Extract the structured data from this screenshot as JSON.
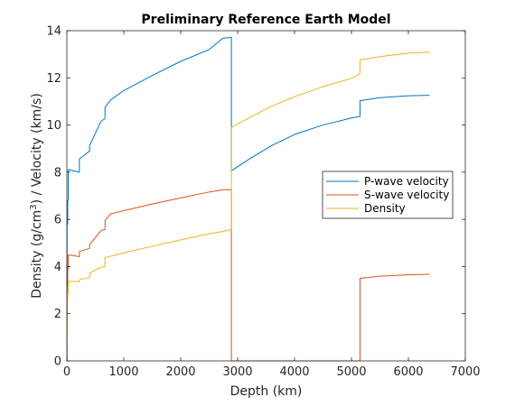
{
  "chart_data": {
    "type": "line",
    "title": "Preliminary Reference Earth Model",
    "xlabel": "Depth (km)",
    "ylabel_parts": [
      "Density (g/cm",
      "3",
      ") / Velocity (km/s)"
    ],
    "xlim": [
      0,
      7000
    ],
    "ylim": [
      0,
      14
    ],
    "xticks": [
      0,
      1000,
      2000,
      3000,
      4000,
      5000,
      6000,
      7000
    ],
    "yticks": [
      0,
      2,
      4,
      6,
      8,
      10,
      12,
      14
    ],
    "grid": false,
    "legend_position": "right",
    "series": [
      {
        "name": "P-wave velocity",
        "color": "#0072BD",
        "points": [
          [
            0,
            1.45
          ],
          [
            3,
            1.45
          ],
          [
            3,
            5.8
          ],
          [
            15,
            5.8
          ],
          [
            15,
            6.8
          ],
          [
            24.4,
            6.8
          ],
          [
            24.4,
            8.11
          ],
          [
            80,
            8.08
          ],
          [
            220,
            8.0
          ],
          [
            220,
            8.56
          ],
          [
            400,
            8.9
          ],
          [
            400,
            9.13
          ],
          [
            600,
            10.16
          ],
          [
            670,
            10.27
          ],
          [
            670,
            10.75
          ],
          [
            771,
            11.07
          ],
          [
            1000,
            11.46
          ],
          [
            1500,
            12.1
          ],
          [
            2000,
            12.7
          ],
          [
            2500,
            13.2
          ],
          [
            2741,
            13.68
          ],
          [
            2891,
            13.72
          ],
          [
            2891,
            8.06
          ],
          [
            3200,
            8.55
          ],
          [
            3600,
            9.13
          ],
          [
            4000,
            9.6
          ],
          [
            4500,
            10.0
          ],
          [
            5000,
            10.3
          ],
          [
            5150,
            10.36
          ],
          [
            5150,
            11.03
          ],
          [
            5500,
            11.16
          ],
          [
            6000,
            11.24
          ],
          [
            6371,
            11.26
          ]
        ]
      },
      {
        "name": "S-wave velocity",
        "color": "#D95319",
        "points": [
          [
            0,
            0
          ],
          [
            3,
            0
          ],
          [
            3,
            3.2
          ],
          [
            15,
            3.2
          ],
          [
            15,
            3.9
          ],
          [
            24.4,
            3.9
          ],
          [
            24.4,
            4.49
          ],
          [
            80,
            4.48
          ],
          [
            220,
            4.42
          ],
          [
            220,
            4.64
          ],
          [
            400,
            4.77
          ],
          [
            400,
            4.93
          ],
          [
            600,
            5.52
          ],
          [
            670,
            5.57
          ],
          [
            670,
            5.95
          ],
          [
            771,
            6.24
          ],
          [
            1000,
            6.37
          ],
          [
            1500,
            6.65
          ],
          [
            2000,
            6.91
          ],
          [
            2500,
            7.16
          ],
          [
            2741,
            7.26
          ],
          [
            2891,
            7.26
          ],
          [
            2891,
            0
          ],
          [
            5150,
            0
          ],
          [
            5150,
            3.5
          ],
          [
            5500,
            3.59
          ],
          [
            6000,
            3.65
          ],
          [
            6371,
            3.67
          ]
        ]
      },
      {
        "name": "Density",
        "color": "#EDB120",
        "points": [
          [
            0,
            1.02
          ],
          [
            3,
            1.02
          ],
          [
            3,
            2.6
          ],
          [
            15,
            2.6
          ],
          [
            15,
            2.9
          ],
          [
            24.4,
            2.9
          ],
          [
            24.4,
            3.38
          ],
          [
            80,
            3.37
          ],
          [
            220,
            3.36
          ],
          [
            220,
            3.44
          ],
          [
            400,
            3.54
          ],
          [
            400,
            3.72
          ],
          [
            600,
            3.98
          ],
          [
            670,
            3.99
          ],
          [
            670,
            4.38
          ],
          [
            771,
            4.44
          ],
          [
            1000,
            4.58
          ],
          [
            1500,
            4.86
          ],
          [
            2000,
            5.13
          ],
          [
            2500,
            5.39
          ],
          [
            2741,
            5.49
          ],
          [
            2891,
            5.57
          ],
          [
            2891,
            9.9
          ],
          [
            3200,
            10.3
          ],
          [
            3600,
            10.8
          ],
          [
            4000,
            11.2
          ],
          [
            4500,
            11.63
          ],
          [
            5000,
            11.98
          ],
          [
            5150,
            12.17
          ],
          [
            5150,
            12.76
          ],
          [
            5500,
            12.9
          ],
          [
            6000,
            13.05
          ],
          [
            6371,
            13.09
          ]
        ]
      }
    ]
  }
}
